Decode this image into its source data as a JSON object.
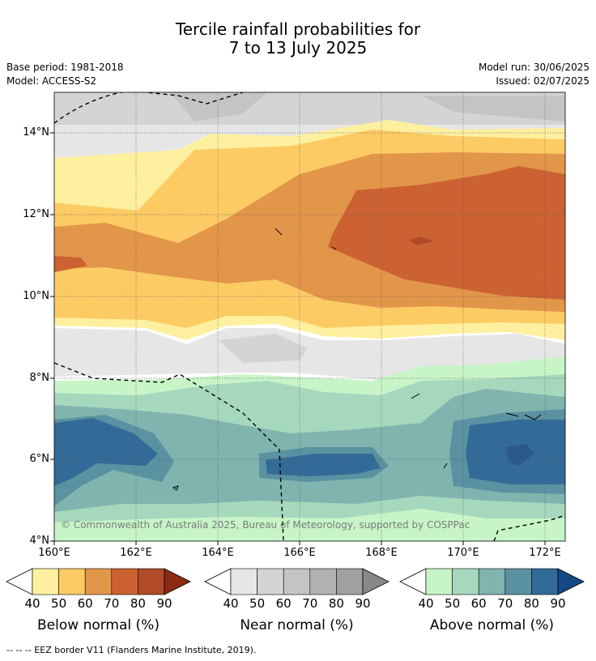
{
  "title_line1": "Tercile rainfall probabilities for",
  "title_line2": "7 to 13 July 2025",
  "base_period": "Base period: 1981-2018",
  "model": "Model: ACCESS-S2",
  "model_run": "Model run: 30/06/2025",
  "issued": "Issued: 02/07/2025",
  "copyright": "© Commonwealth of Australia 2025, Bureau of Meteorology, supported by COSPPac",
  "footer": "--  --  -- EEZ border V11 (Flanders Marine Institute, 2019).",
  "lat_labels": [
    "14°N",
    "12°N",
    "10°N",
    "8°N",
    "6°N",
    "4°N"
  ],
  "lon_labels": [
    "160°E",
    "162°E",
    "164°E",
    "166°E",
    "168°E",
    "170°E",
    "172°E"
  ],
  "colorbars": [
    {
      "title": "Below normal (%)",
      "ticks": [
        "40",
        "50",
        "60",
        "70",
        "80",
        "90"
      ],
      "colors": [
        "#fff0a0",
        "#fdcb64",
        "#e2964a",
        "#cc6232",
        "#b04a28",
        "#8c2a14"
      ]
    },
    {
      "title": "Near normal (%)",
      "ticks": [
        "40",
        "50",
        "60",
        "70",
        "80",
        "90"
      ],
      "colors": [
        "#e6e6e6",
        "#d4d4d4",
        "#c4c4c4",
        "#b2b2b2",
        "#a0a0a0",
        "#888888"
      ]
    },
    {
      "title": "Above normal (%)",
      "ticks": [
        "40",
        "50",
        "60",
        "70",
        "80",
        "90"
      ],
      "colors": [
        "#c8f5c8",
        "#a6d8be",
        "#80b4ae",
        "#5a92a2",
        "#336b98",
        "#144a84"
      ]
    }
  ]
}
